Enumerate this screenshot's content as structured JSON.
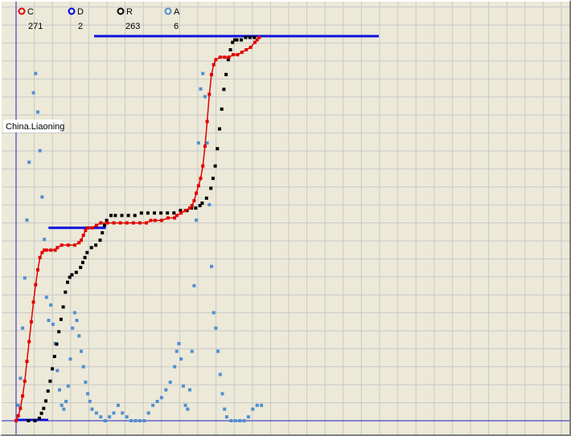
{
  "chart_data": {
    "type": "line",
    "title": "",
    "xlabel": "",
    "ylabel": "",
    "grid": true,
    "legend_placement": "top-left",
    "annotation": "China.Liaoning",
    "series": [
      {
        "key": "C",
        "name": "C",
        "count": "271",
        "color": "#e00000",
        "style": "line-markers"
      },
      {
        "key": "D",
        "name": "D",
        "count": "2",
        "color": "#0000e0",
        "style": "bars"
      },
      {
        "key": "R",
        "name": "R",
        "count": "263",
        "color": "#000000",
        "style": "markers"
      },
      {
        "key": "A",
        "name": "A",
        "count": "6",
        "color": "#4f8fd0",
        "style": "markers"
      }
    ],
    "xlim": [
      0,
      120
    ],
    "ylim": [
      0,
      100
    ],
    "C_points": [
      [
        0,
        0
      ],
      [
        1,
        2
      ],
      [
        2,
        5
      ],
      [
        3,
        10
      ],
      [
        4,
        16
      ],
      [
        5,
        24
      ],
      [
        6,
        32
      ],
      [
        7,
        40
      ],
      [
        8,
        48
      ],
      [
        9,
        55
      ],
      [
        10,
        61
      ],
      [
        11,
        66
      ],
      [
        12,
        68
      ],
      [
        13,
        69
      ],
      [
        14,
        69
      ],
      [
        16,
        69
      ],
      [
        18,
        69
      ],
      [
        19,
        70
      ],
      [
        21,
        71
      ],
      [
        24,
        71
      ],
      [
        27,
        71
      ],
      [
        29,
        72
      ],
      [
        30,
        73
      ],
      [
        31,
        75
      ],
      [
        32,
        77
      ],
      [
        33,
        78
      ],
      [
        35,
        78
      ],
      [
        37,
        79
      ],
      [
        39,
        80
      ],
      [
        42,
        80
      ],
      [
        45,
        80
      ],
      [
        48,
        80
      ],
      [
        51,
        80
      ],
      [
        54,
        80
      ],
      [
        57,
        80
      ],
      [
        60,
        80
      ],
      [
        62,
        81
      ],
      [
        64,
        81
      ],
      [
        67,
        81
      ],
      [
        70,
        82
      ],
      [
        73,
        82
      ],
      [
        74,
        83
      ],
      [
        76,
        84
      ],
      [
        78,
        85
      ],
      [
        80,
        86
      ],
      [
        81,
        87
      ],
      [
        82,
        89
      ],
      [
        83,
        92
      ],
      [
        84,
        95
      ],
      [
        85,
        98
      ],
      [
        86,
        103
      ],
      [
        87,
        111
      ],
      [
        88,
        121
      ],
      [
        89,
        132
      ],
      [
        90,
        140
      ],
      [
        91,
        144
      ],
      [
        92,
        146
      ],
      [
        94,
        147
      ],
      [
        96,
        147
      ],
      [
        98,
        147
      ],
      [
        100,
        148
      ],
      [
        102,
        148
      ],
      [
        104,
        149
      ],
      [
        106,
        150
      ],
      [
        108,
        151
      ],
      [
        110,
        153
      ],
      [
        111,
        154
      ],
      [
        112,
        155
      ]
    ],
    "R_points": [
      [
        2,
        0
      ],
      [
        5,
        0
      ],
      [
        7,
        1
      ],
      [
        8,
        3
      ],
      [
        9,
        5
      ],
      [
        10,
        8
      ],
      [
        11,
        12
      ],
      [
        12,
        16
      ],
      [
        13,
        21
      ],
      [
        14,
        26
      ],
      [
        15,
        31
      ],
      [
        16,
        36
      ],
      [
        17,
        41
      ],
      [
        18,
        46
      ],
      [
        19,
        52
      ],
      [
        20,
        56
      ],
      [
        21,
        58
      ],
      [
        22,
        59
      ],
      [
        24,
        60
      ],
      [
        26,
        62
      ],
      [
        27,
        64
      ],
      [
        28,
        66
      ],
      [
        29,
        68
      ],
      [
        31,
        70
      ],
      [
        33,
        71
      ],
      [
        35,
        73
      ],
      [
        36,
        76
      ],
      [
        37,
        79
      ],
      [
        38,
        81
      ],
      [
        40,
        83
      ],
      [
        42,
        83
      ],
      [
        45,
        83
      ],
      [
        48,
        83
      ],
      [
        51,
        83
      ],
      [
        54,
        84
      ],
      [
        57,
        84
      ],
      [
        60,
        84
      ],
      [
        63,
        84
      ],
      [
        66,
        84
      ],
      [
        69,
        84
      ],
      [
        72,
        85
      ],
      [
        75,
        85
      ],
      [
        77,
        86
      ],
      [
        79,
        86
      ],
      [
        81,
        87
      ],
      [
        82,
        88
      ],
      [
        84,
        90
      ],
      [
        86,
        94
      ],
      [
        87,
        98
      ],
      [
        88,
        103
      ],
      [
        89,
        110
      ],
      [
        90,
        118
      ],
      [
        91,
        126
      ],
      [
        92,
        134
      ],
      [
        93,
        140
      ],
      [
        94,
        146
      ],
      [
        95,
        150
      ],
      [
        96,
        153
      ],
      [
        97,
        154
      ],
      [
        98,
        154
      ],
      [
        100,
        154
      ],
      [
        102,
        155
      ],
      [
        104,
        155
      ],
      [
        106,
        155
      ]
    ],
    "A_points": [
      [
        0,
        0
      ],
      [
        1,
        4
      ],
      [
        2,
        11
      ],
      [
        3,
        24
      ],
      [
        4,
        37
      ],
      [
        5,
        52
      ],
      [
        6,
        67
      ],
      [
        7,
        76
      ],
      [
        8,
        85
      ],
      [
        9,
        90
      ],
      [
        10,
        80
      ],
      [
        11,
        70
      ],
      [
        12,
        58
      ],
      [
        13,
        47
      ],
      [
        14,
        32
      ],
      [
        15,
        26
      ],
      [
        16,
        30
      ],
      [
        17,
        25
      ],
      [
        18,
        20
      ],
      [
        19,
        13
      ],
      [
        20,
        8
      ],
      [
        21,
        4
      ],
      [
        22,
        3
      ],
      [
        23,
        5
      ],
      [
        24,
        9
      ],
      [
        25,
        16
      ],
      [
        26,
        24
      ],
      [
        27,
        28
      ],
      [
        28,
        26
      ],
      [
        29,
        22
      ],
      [
        30,
        18
      ],
      [
        31,
        14
      ],
      [
        32,
        10
      ],
      [
        33,
        7
      ],
      [
        34,
        5
      ],
      [
        35,
        3
      ],
      [
        37,
        2
      ],
      [
        39,
        1
      ],
      [
        41,
        0
      ],
      [
        43,
        1
      ],
      [
        45,
        2
      ],
      [
        47,
        4
      ],
      [
        49,
        2
      ],
      [
        51,
        1
      ],
      [
        53,
        0
      ],
      [
        55,
        0
      ],
      [
        57,
        0
      ],
      [
        59,
        0
      ],
      [
        61,
        2
      ],
      [
        63,
        4
      ],
      [
        65,
        5
      ],
      [
        67,
        6
      ],
      [
        69,
        8
      ],
      [
        71,
        10
      ],
      [
        73,
        14
      ],
      [
        74,
        18
      ],
      [
        75,
        20
      ],
      [
        76,
        16
      ],
      [
        77,
        9
      ],
      [
        78,
        4
      ],
      [
        79,
        3
      ],
      [
        80,
        8
      ],
      [
        81,
        18
      ],
      [
        82,
        35
      ],
      [
        83,
        52
      ],
      [
        84,
        72
      ],
      [
        85,
        86
      ],
      [
        86,
        90
      ],
      [
        87,
        84
      ],
      [
        88,
        72
      ],
      [
        89,
        56
      ],
      [
        90,
        40
      ],
      [
        91,
        28
      ],
      [
        92,
        24
      ],
      [
        93,
        18
      ],
      [
        94,
        12
      ],
      [
        95,
        7
      ],
      [
        96,
        3
      ],
      [
        97,
        1
      ],
      [
        99,
        0
      ],
      [
        101,
        0
      ],
      [
        103,
        0
      ],
      [
        105,
        0
      ],
      [
        107,
        1
      ],
      [
        109,
        3
      ],
      [
        111,
        4
      ],
      [
        113,
        4
      ]
    ],
    "D_bars": [
      [
        9,
        25,
        62
      ],
      [
        30,
        100,
        100
      ]
    ]
  }
}
